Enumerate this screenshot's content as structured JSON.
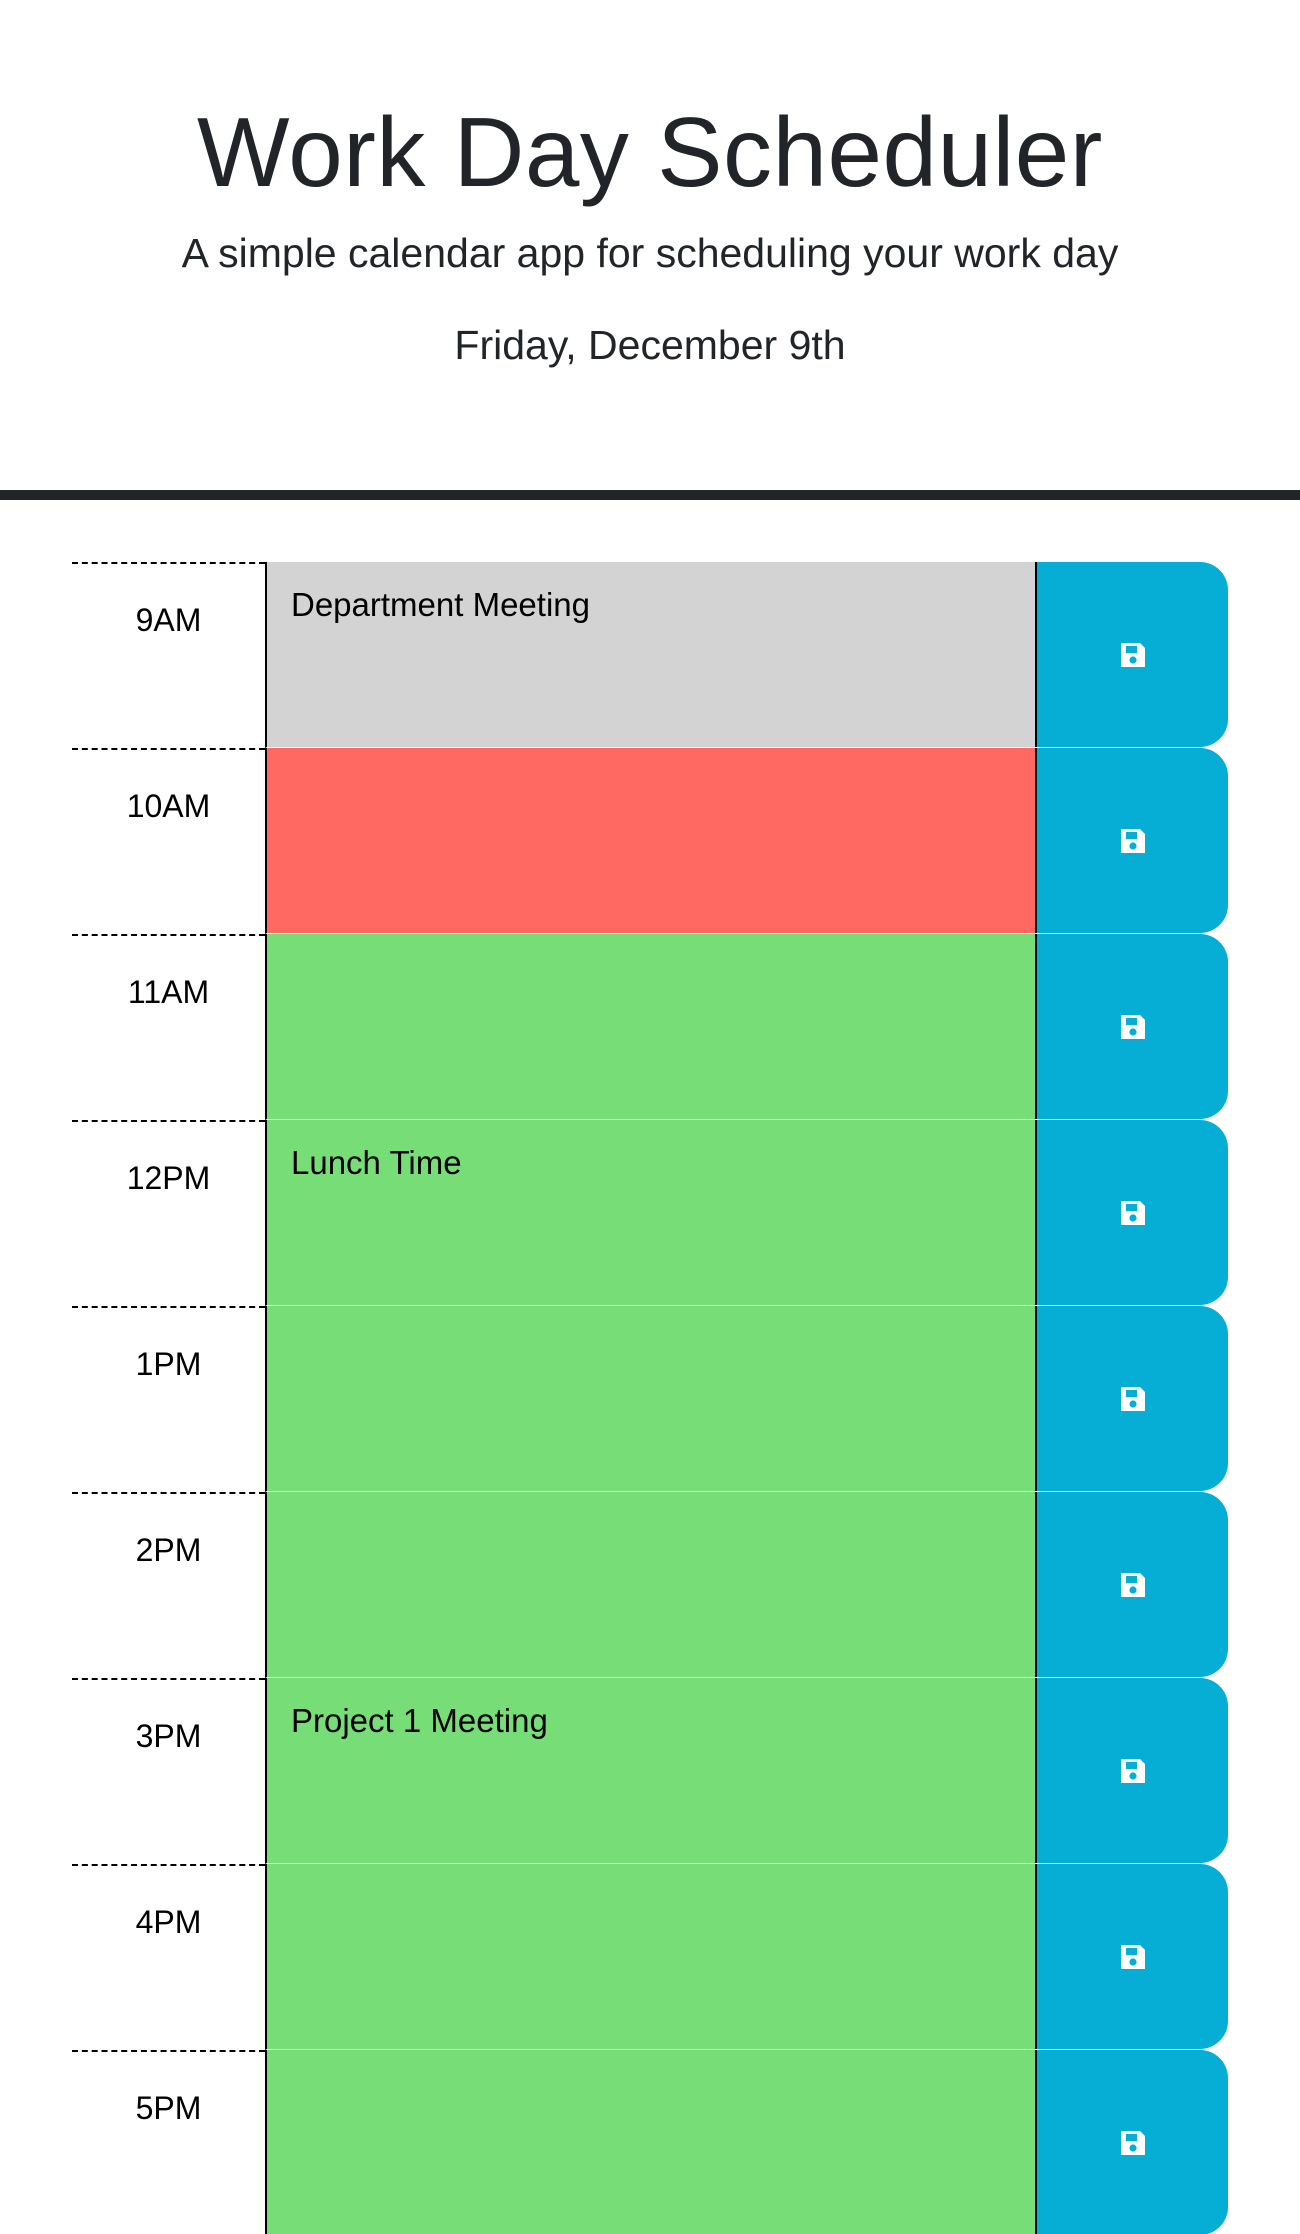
{
  "header": {
    "title": "Work Day Scheduler",
    "lead": "A simple calendar app for scheduling your work day",
    "current_day": "Friday, December 9th"
  },
  "colors": {
    "past": "#d3d3d3",
    "present": "#ff6961",
    "future": "#77dd77",
    "save_button": "#06aed5"
  },
  "timeblocks": [
    {
      "hour": "9AM",
      "text": "Department Meeting",
      "state": "past",
      "icon": "save-icon"
    },
    {
      "hour": "10AM",
      "text": "",
      "state": "present",
      "icon": "save-icon"
    },
    {
      "hour": "11AM",
      "text": "",
      "state": "future",
      "icon": "save-icon"
    },
    {
      "hour": "12PM",
      "text": "Lunch Time",
      "state": "future",
      "icon": "save-icon"
    },
    {
      "hour": "1PM",
      "text": "",
      "state": "future",
      "icon": "save-icon"
    },
    {
      "hour": "2PM",
      "text": "",
      "state": "future",
      "icon": "save-icon"
    },
    {
      "hour": "3PM",
      "text": "Project 1 Meeting",
      "state": "future",
      "icon": "save-icon"
    },
    {
      "hour": "4PM",
      "text": "",
      "state": "future",
      "icon": "save-icon"
    },
    {
      "hour": "5PM",
      "text": "",
      "state": "future",
      "icon": "save-icon"
    }
  ]
}
